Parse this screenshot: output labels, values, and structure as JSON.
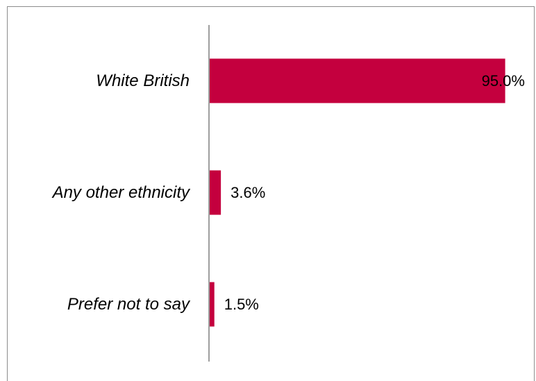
{
  "chart_data": {
    "type": "bar",
    "orientation": "horizontal",
    "categories": [
      "White British",
      "Any other ethnicity",
      "Prefer not to say"
    ],
    "values": [
      95.0,
      3.6,
      1.5
    ],
    "value_labels": [
      "95.0%",
      "3.6%",
      "1.5%"
    ],
    "title": "",
    "xlabel": "",
    "ylabel": "",
    "xlim": [
      0,
      100
    ],
    "grid": false,
    "legend": "none",
    "bar_color": "#C4003E"
  }
}
